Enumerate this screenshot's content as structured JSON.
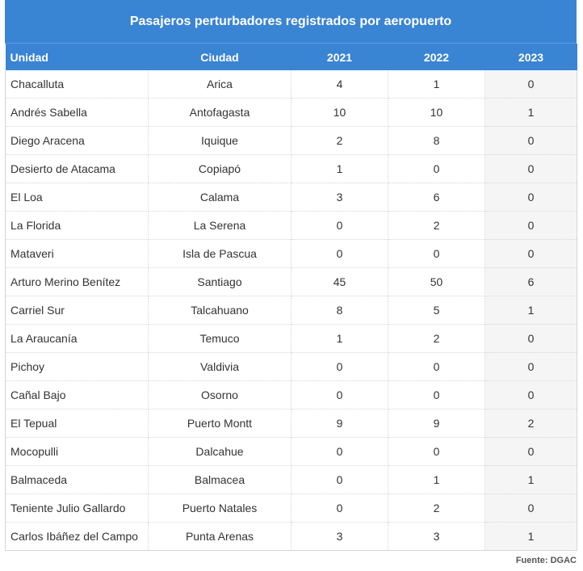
{
  "chart_data": {
    "type": "table",
    "title": "Pasajeros perturbadores registrados por aeropuerto",
    "columns": [
      "Unidad",
      "Ciudad",
      "2021",
      "2022",
      "2023"
    ],
    "rows": [
      [
        "Chacalluta",
        "Arica",
        "4",
        "1",
        "0"
      ],
      [
        "Andrés Sabella",
        "Antofagasta",
        "10",
        "10",
        "1"
      ],
      [
        "Diego Aracena",
        "Iquique",
        "2",
        "8",
        "0"
      ],
      [
        "Desierto de Atacama",
        "Copiapó",
        "1",
        "0",
        "0"
      ],
      [
        "El Loa",
        "Calama",
        "3",
        "6",
        "0"
      ],
      [
        "La Florida",
        "La Serena",
        "0",
        "2",
        "0"
      ],
      [
        "Mataveri",
        "Isla de Pascua",
        "0",
        "0",
        "0"
      ],
      [
        "Arturo Merino Benítez",
        "Santiago",
        "45",
        "50",
        "6"
      ],
      [
        "Carriel Sur",
        "Talcahuano",
        "8",
        "5",
        "1"
      ],
      [
        "La Araucanía",
        "Temuco",
        "1",
        "2",
        "0"
      ],
      [
        "Pichoy",
        "Valdivia",
        "0",
        "0",
        "0"
      ],
      [
        "Cañal Bajo",
        "Osorno",
        "0",
        "0",
        "0"
      ],
      [
        "El Tepual",
        "Puerto Montt",
        "9",
        "9",
        "2"
      ],
      [
        "Mocopulli",
        "Dalcahue",
        "0",
        "0",
        "0"
      ],
      [
        "Balmaceda",
        "Balmacea",
        "0",
        "1",
        "1"
      ],
      [
        "Teniente Julio Gallardo",
        "Puerto Natales",
        "0",
        "2",
        "0"
      ],
      [
        "Carlos Ibáñez del Campo",
        "Punta Arenas",
        "3",
        "3",
        "1"
      ]
    ],
    "source": "Fuente: DGAC",
    "header_color": "#3a84d4",
    "last_column_shade": "#f5f5f5"
  }
}
